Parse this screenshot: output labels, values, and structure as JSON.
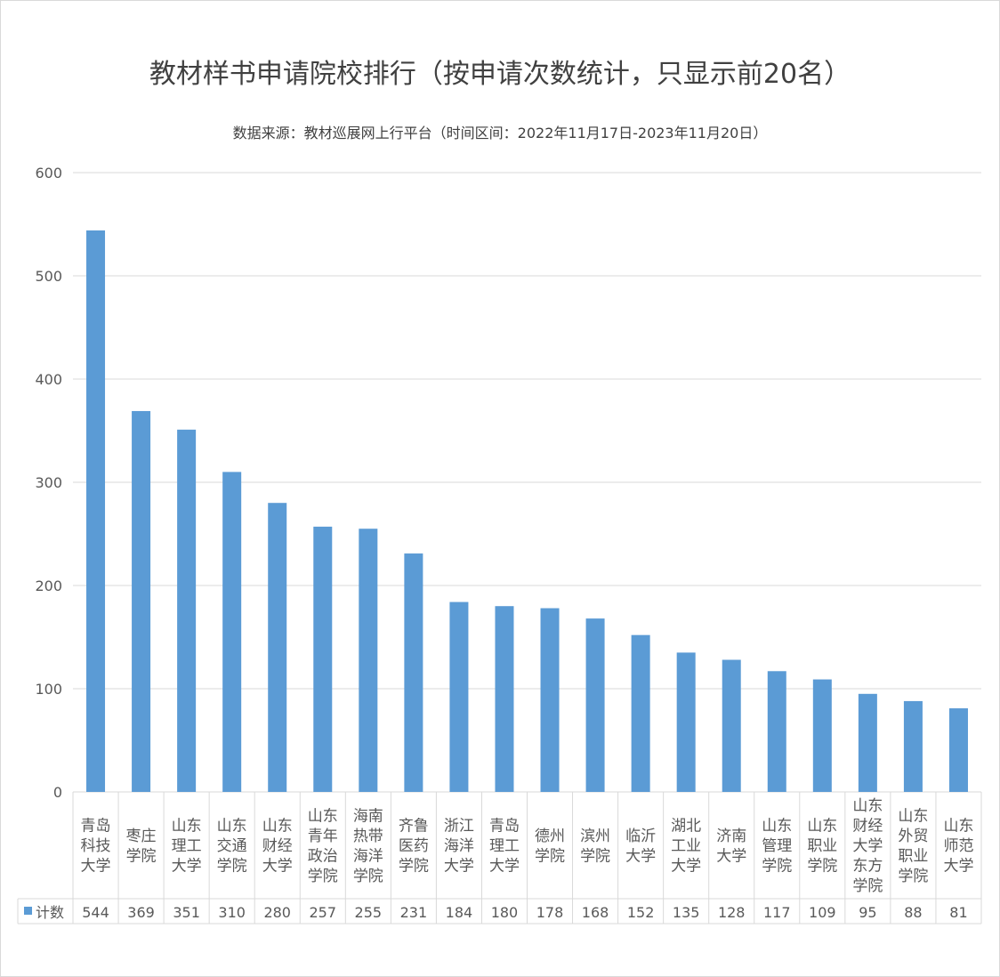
{
  "chart_data": {
    "type": "bar",
    "title": "教材样书申请院校排行（按申请次数统计，只显示前20名）",
    "subtitle": "数据来源：教材巡展网上行平台（时间区间：2022年11月17日-2023年11月20日）",
    "xlabel": "",
    "ylabel": "",
    "ylim": [
      0,
      600
    ],
    "yticks": [
      0,
      100,
      200,
      300,
      400,
      500,
      600
    ],
    "grid": true,
    "legend": "data-table",
    "series_name": "计数",
    "color": "#5b9bd5",
    "categories": [
      "青岛科技大学",
      "枣庄学院",
      "山东理工大学",
      "山东交通学院",
      "山东财经大学",
      "山东青年政治学院",
      "海南热带海洋学院",
      "齐鲁医药学院",
      "浙江海洋大学",
      "青岛理工大学",
      "德州学院",
      "滨州学院",
      "临沂大学",
      "湖北工业大学",
      "济南大学",
      "山东管理学院",
      "山东职业学院",
      "山东财经大学东方学院",
      "山东外贸职业学院",
      "山东师范大学"
    ],
    "values": [
      544,
      369,
      351,
      310,
      280,
      257,
      255,
      231,
      184,
      180,
      178,
      168,
      152,
      135,
      128,
      117,
      109,
      95,
      88,
      81
    ]
  }
}
